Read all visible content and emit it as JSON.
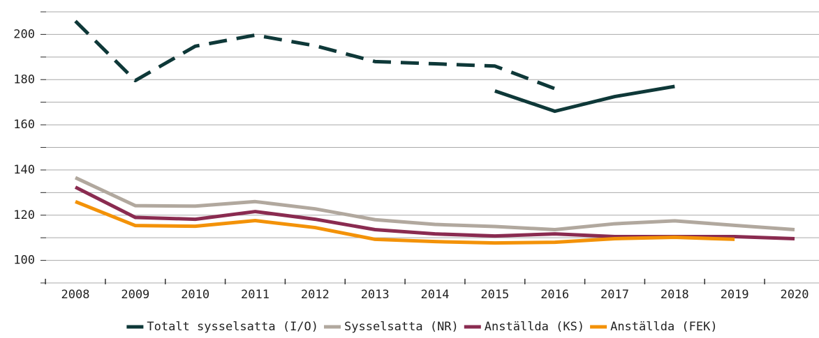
{
  "chart_data": {
    "type": "line",
    "categories": [
      "2008",
      "2009",
      "2010",
      "2011",
      "2012",
      "2013",
      "2014",
      "2015",
      "2016",
      "2017",
      "2018",
      "2019",
      "2020"
    ],
    "series": [
      {
        "name": "Totalt sysselsatta (I/O)",
        "color": "#0e3838",
        "values": [
          null,
          null,
          null,
          null,
          null,
          null,
          null,
          175,
          166,
          172.5,
          177,
          null,
          null
        ],
        "dashed_values": [
          205.9,
          179.6,
          194.8,
          199.7,
          195,
          188,
          187,
          186,
          176,
          null,
          null,
          null,
          null
        ]
      },
      {
        "name": "Sysselsatta (NR)",
        "color": "#b1a89e",
        "values": [
          136.6,
          124.2,
          124,
          126,
          122.8,
          118,
          115.9,
          115,
          113.6,
          116.2,
          117.5,
          115.5,
          113.6
        ]
      },
      {
        "name": "Anställda (KS)",
        "color": "#8a2b50",
        "values": [
          132.4,
          119,
          118.2,
          121.6,
          118.2,
          113.6,
          111.7,
          110.8,
          111.7,
          110.5,
          110.5,
          110.5,
          109.6
        ]
      },
      {
        "name": "Anställda (FEK)",
        "color": "#f39208",
        "values": [
          126,
          115.4,
          115.1,
          117.6,
          114.5,
          109.3,
          108.3,
          107.7,
          108,
          109.6,
          110.2,
          109.3,
          null
        ]
      }
    ],
    "ylim": [
      90,
      210
    ],
    "yticks": [
      100,
      120,
      140,
      160,
      180,
      200
    ],
    "minor_yticks": [
      90,
      110,
      130,
      150,
      170,
      190,
      210
    ],
    "grid": true,
    "legend": "bottom"
  }
}
